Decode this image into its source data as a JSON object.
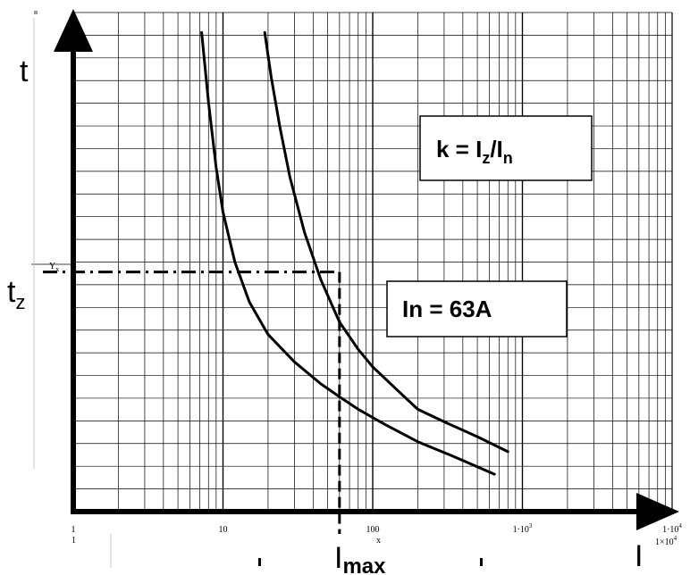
{
  "chart_data": {
    "type": "line",
    "xscale": "log",
    "xlim": [
      1,
      10000
    ],
    "title": "",
    "y_axis_label": "t",
    "x_marker_label": "I",
    "x_marker_subscript": "max",
    "y_marker_label": "t",
    "y_marker_subscript": "z",
    "x_corner_label": "I",
    "x_tick_labels": [
      "1",
      "10",
      "100",
      "1·10",
      "1·10"
    ],
    "x_tick_values": [
      1,
      10,
      100,
      1000,
      10000
    ],
    "x_tick_exponents": [
      "",
      "",
      "",
      "3",
      "4"
    ],
    "small_labels": {
      "left_bottom": "1",
      "x_var": "x",
      "y_var": "Y",
      "y_var_sub": "x",
      "right_bottom": "1×10",
      "right_bottom_exp": "4"
    },
    "grid": true,
    "series": [
      {
        "x": [
          7.2,
          8,
          9,
          10,
          12,
          15,
          20,
          30,
          45,
          60,
          80,
          120,
          200,
          350,
          650
        ],
        "y": [
          0.96,
          0.82,
          0.69,
          0.6,
          0.5,
          0.42,
          0.355,
          0.3,
          0.256,
          0.23,
          0.205,
          0.175,
          0.14,
          0.11,
          0.075
        ]
      },
      {
        "x": [
          19,
          21,
          24,
          28,
          35,
          45,
          60,
          80,
          100,
          150,
          200,
          300,
          500,
          800
        ],
        "y": [
          0.96,
          0.87,
          0.77,
          0.67,
          0.56,
          0.465,
          0.38,
          0.325,
          0.29,
          0.24,
          0.205,
          0.18,
          0.15,
          0.12
        ]
      }
    ],
    "marker": {
      "x": 60,
      "y": 0.48
    },
    "annotations": [
      {
        "base": "k = I",
        "sub1": "z",
        "mid": "/I",
        "sub2": "n"
      },
      {
        "text": "In = 63A"
      }
    ]
  }
}
